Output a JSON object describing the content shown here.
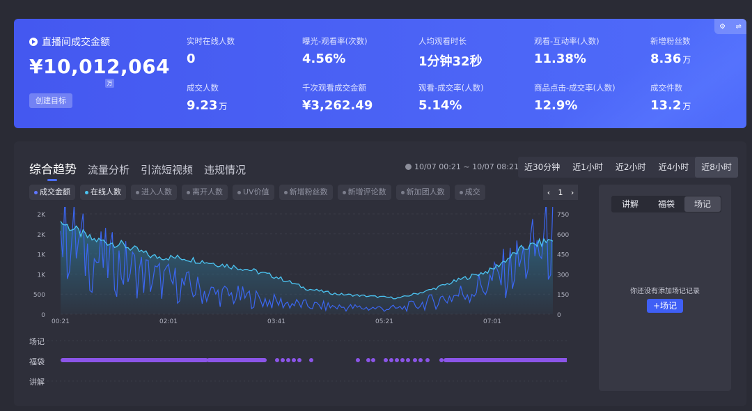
{
  "gmv": {
    "title": "直播间成交金额",
    "value": "¥10,012,064",
    "unit": "万",
    "target_button": "创建目标"
  },
  "metrics": [
    {
      "label": "实时在线人数",
      "value": "0",
      "unit": ""
    },
    {
      "label": "曝光-观看率(次数)",
      "value": "4.56%",
      "unit": ""
    },
    {
      "label": "人均观看时长",
      "value": "1分钟32秒",
      "unit": ""
    },
    {
      "label": "观看-互动率(人数)",
      "value": "11.38%",
      "unit": ""
    },
    {
      "label": "新增粉丝数",
      "value": "8.36",
      "unit": "万"
    },
    {
      "label": "成交人数",
      "value": "9.23",
      "unit": "万"
    },
    {
      "label": "千次观看成交金额",
      "value": "¥3,262.49",
      "unit": ""
    },
    {
      "label": "观看-成交率(人数)",
      "value": "5.14%",
      "unit": ""
    },
    {
      "label": "商品点击-成交率(人数)",
      "value": "12.9%",
      "unit": ""
    },
    {
      "label": "成交件数",
      "value": "13.2",
      "unit": "万"
    }
  ],
  "corner": {
    "settings_icon": "gear-icon",
    "swap_icon": "swap-icon"
  },
  "tabs": [
    "综合趋势",
    "流量分析",
    "引流短视频",
    "违规情况"
  ],
  "time_range": "10/07 00:21 ~ 10/07 08:21",
  "periods": [
    "近30分钟",
    "近1小时",
    "近2小时",
    "近4小时",
    "近8小时"
  ],
  "active_period": "近8小时",
  "chips": [
    {
      "label": "成交金额",
      "on": true,
      "color": "#5f76ff"
    },
    {
      "label": "在线人数",
      "on": true,
      "color": "#4cc4f2"
    },
    {
      "label": "进入人数",
      "on": false
    },
    {
      "label": "离开人数",
      "on": false
    },
    {
      "label": "UV价值",
      "on": false
    },
    {
      "label": "新增粉丝数",
      "on": false
    },
    {
      "label": "新增评论数",
      "on": false
    },
    {
      "label": "新加团人数",
      "on": false
    },
    {
      "label": "成交",
      "on": false
    }
  ],
  "pager": {
    "prev": "‹",
    "page": "1",
    "next": "›"
  },
  "tracks": {
    "record": "场记",
    "bag": "福袋",
    "explain": "讲解"
  },
  "side": {
    "tabs": [
      "讲解",
      "福袋",
      "场记"
    ],
    "active_tab": "场记",
    "empty_text": "你还没有添加场记记录",
    "add_button": "+场记"
  },
  "chart_data": {
    "type": "line",
    "x_ticks": [
      "00:21",
      "02:01",
      "03:41",
      "05:21",
      "07:01"
    ],
    "y_left_ticks": [
      "0",
      "500",
      "1K",
      "1K",
      "2K",
      "2K"
    ],
    "y_right_ticks": [
      "0",
      "150",
      "300",
      "450",
      "600",
      "750"
    ],
    "ylim_left": [
      0,
      2500
    ],
    "ylim_right": [
      0,
      750
    ],
    "series": [
      {
        "name": "在线人数",
        "axis": "right",
        "color": "#4cc4f2",
        "x": [
          "00:21",
          "00:51",
          "01:21",
          "01:51",
          "02:21",
          "02:51",
          "03:21",
          "03:51",
          "04:21",
          "04:51",
          "05:21",
          "05:51",
          "06:21",
          "06:51",
          "07:21",
          "07:51",
          "08:21"
        ],
        "values": [
          690,
          560,
          520,
          430,
          420,
          380,
          340,
          280,
          190,
          150,
          135,
          120,
          180,
          260,
          330,
          490,
          560
        ]
      },
      {
        "name": "成交金额",
        "axis": "left",
        "color": "#3b66f0",
        "x": [
          "00:21",
          "00:51",
          "01:21",
          "01:51",
          "02:21",
          "02:51",
          "03:21",
          "03:51",
          "04:21",
          "04:51",
          "05:21",
          "05:51",
          "06:21",
          "06:51",
          "07:21",
          "07:51",
          "08:21"
        ],
        "values": [
          2100,
          1400,
          1200,
          900,
          700,
          500,
          420,
          300,
          220,
          180,
          150,
          140,
          300,
          500,
          800,
          1300,
          1900
        ]
      }
    ]
  }
}
